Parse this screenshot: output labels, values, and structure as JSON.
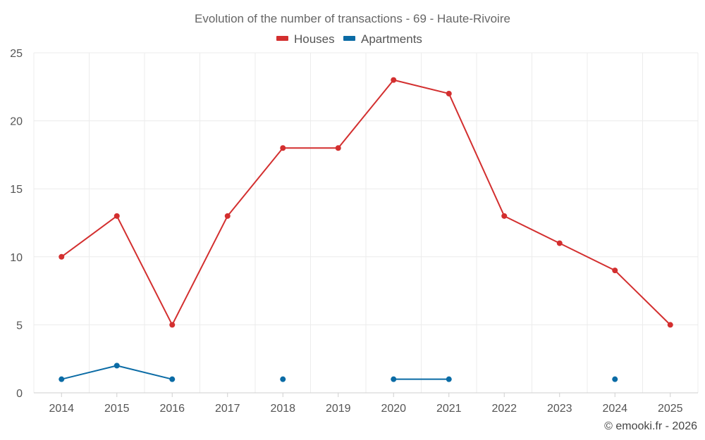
{
  "chart_data": {
    "type": "line",
    "title": "Evolution of the number of transactions - 69 - Haute-Rivoire",
    "x": [
      "2014",
      "2015",
      "2016",
      "2017",
      "2018",
      "2019",
      "2020",
      "2021",
      "2022",
      "2023",
      "2024",
      "2025"
    ],
    "ylim": [
      0,
      25
    ],
    "yticks": [
      0,
      5,
      10,
      15,
      20,
      25
    ],
    "xlabel": "",
    "ylabel": "",
    "grid": true,
    "legend_position": "top-center",
    "series": [
      {
        "name": "Houses",
        "color": "#d32f2f",
        "values": [
          10,
          13,
          5,
          13,
          18,
          18,
          23,
          22,
          13,
          11,
          9,
          5
        ]
      },
      {
        "name": "Apartments",
        "color": "#0a6ba5",
        "values": [
          1,
          2,
          1,
          null,
          1,
          null,
          1,
          1,
          null,
          null,
          1,
          null
        ]
      }
    ]
  },
  "credit": "© emooki.fr - 2026"
}
